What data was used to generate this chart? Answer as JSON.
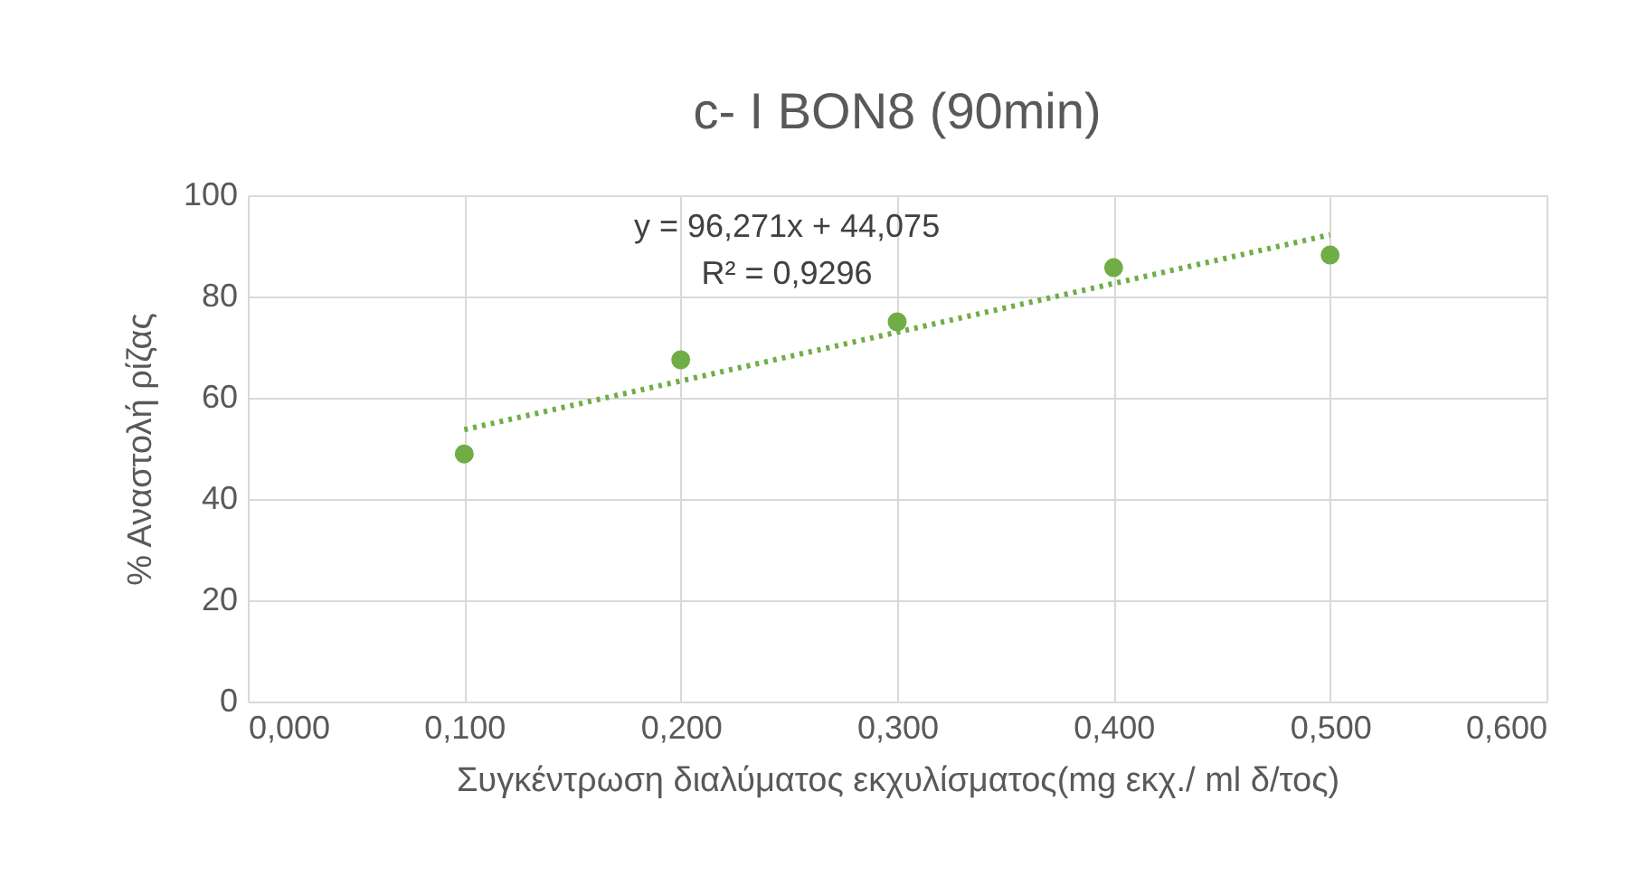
{
  "chart_data": {
    "type": "scatter",
    "title": "c- I BON8 (90min)",
    "xlabel": "Συγκέντρωση διαλύματος εκχυλίσματος(mg εκχ./ ml δ/τος)",
    "ylabel": "% Αναστολή ρίζας",
    "annotations": [
      "y = 96,271x + 44,075",
      "R² = 0,9296"
    ],
    "x": [
      0.1,
      0.2,
      0.3,
      0.4,
      0.5
    ],
    "series": [
      {
        "color": "#70ad47",
        "marker": "circle",
        "values": [
          48.9,
          67.5,
          75,
          85.7,
          88.2
        ]
      },
      {
        "type": "line",
        "color": "#70ad47",
        "line_style": "dotted",
        "x": [
          0.1,
          0.5
        ],
        "values": [
          53.7,
          92.2
        ]
      }
    ],
    "xlim": [
      0,
      0.6
    ],
    "xticks": [
      {
        "value": 0,
        "label": "0,000"
      },
      {
        "value": 0.1,
        "label": "0,100"
      },
      {
        "value": 0.2,
        "label": "0,200"
      },
      {
        "value": 0.3,
        "label": "0,300"
      },
      {
        "value": 0.4,
        "label": "0,400"
      },
      {
        "value": 0.5,
        "label": "0,500"
      },
      {
        "value": 0.6,
        "label": "0,600"
      }
    ],
    "ylim": [
      0,
      100
    ],
    "yticks": [
      0,
      20,
      40,
      60,
      80,
      100
    ],
    "grid": true
  }
}
